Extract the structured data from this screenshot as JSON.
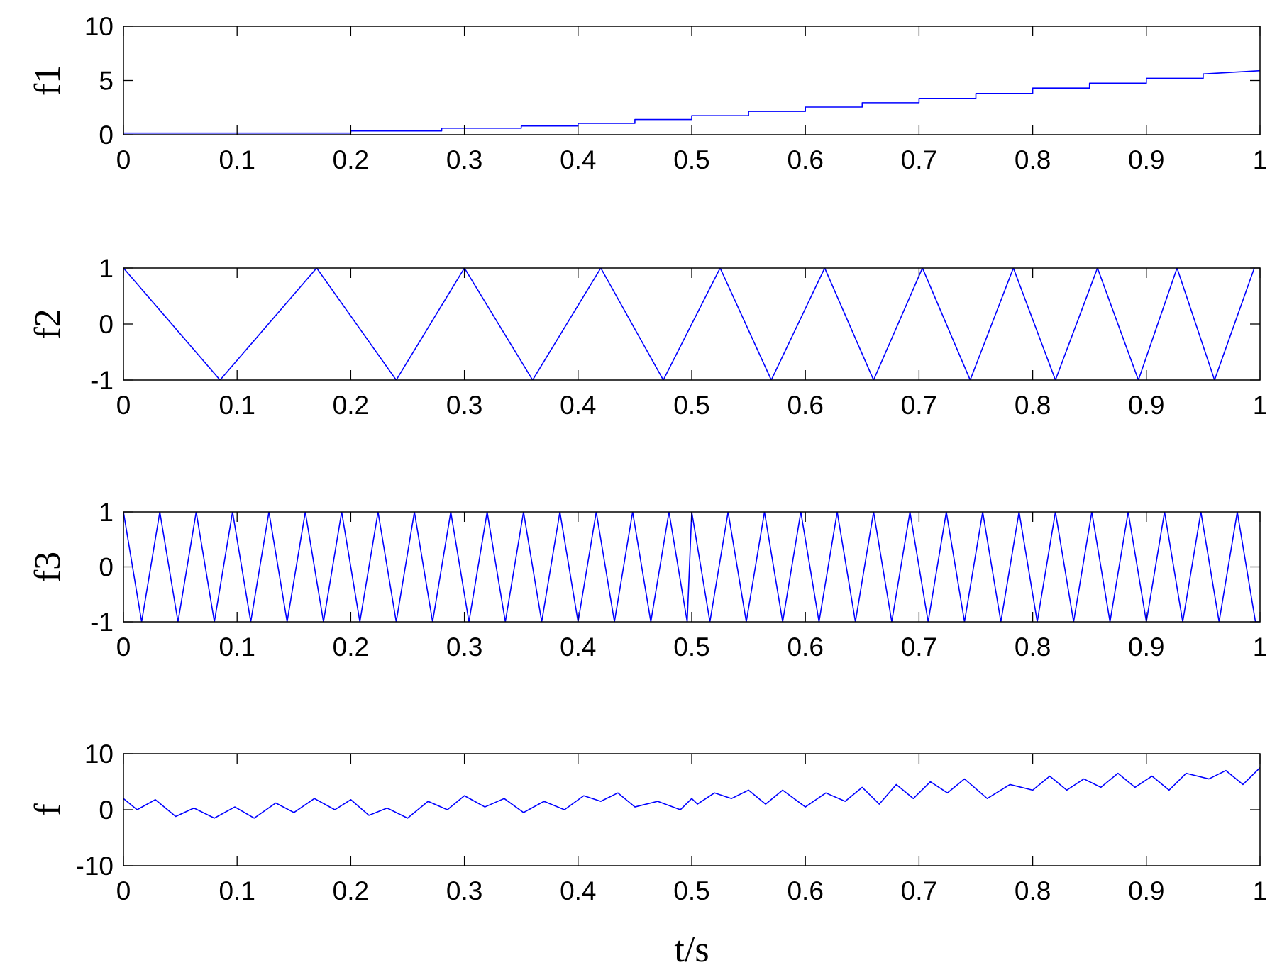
{
  "chart_data": [
    {
      "type": "line",
      "ylabel": "f1",
      "xlabel": "",
      "xlim": [
        0,
        1
      ],
      "ylim": [
        0,
        10
      ],
      "xticks": [
        0,
        0.1,
        0.2,
        0.3,
        0.4,
        0.5,
        0.6,
        0.7,
        0.8,
        0.9,
        1
      ],
      "xtick_labels": [
        "0",
        "0.1",
        "0.2",
        "0.3",
        "0.4",
        "0.5",
        "0.6",
        "0.7",
        "0.8",
        "0.9",
        "1"
      ],
      "yticks": [
        0,
        5,
        10
      ],
      "ytick_labels": [
        "0",
        "5",
        "10"
      ],
      "grid": false,
      "color": "#0000ff",
      "series": [
        {
          "x": [
            0,
            0.2,
            0.2,
            0.28,
            0.28,
            0.35,
            0.35,
            0.4,
            0.4,
            0.45,
            0.45,
            0.5,
            0.5,
            0.55,
            0.55,
            0.6,
            0.6,
            0.65,
            0.65,
            0.7,
            0.7,
            0.75,
            0.75,
            0.8,
            0.8,
            0.85,
            0.85,
            0.9,
            0.9,
            0.95,
            0.95,
            1.0
          ],
          "y": [
            0.15,
            0.15,
            0.35,
            0.35,
            0.6,
            0.6,
            0.8,
            0.8,
            1.05,
            1.05,
            1.4,
            1.4,
            1.75,
            1.75,
            2.15,
            2.15,
            2.55,
            2.55,
            2.95,
            2.95,
            3.35,
            3.35,
            3.8,
            3.8,
            4.3,
            4.3,
            4.75,
            4.75,
            5.2,
            5.2,
            5.6,
            5.9
          ]
        }
      ]
    },
    {
      "type": "line",
      "ylabel": "f2",
      "xlabel": "",
      "xlim": [
        0,
        1
      ],
      "ylim": [
        -1,
        1
      ],
      "xticks": [
        0,
        0.1,
        0.2,
        0.3,
        0.4,
        0.5,
        0.6,
        0.7,
        0.8,
        0.9,
        1
      ],
      "xtick_labels": [
        "0",
        "0.1",
        "0.2",
        "0.3",
        "0.4",
        "0.5",
        "0.6",
        "0.7",
        "0.8",
        "0.9",
        "1"
      ],
      "yticks": [
        -1,
        0,
        1
      ],
      "ytick_labels": [
        "-1",
        "0",
        "1"
      ],
      "grid": false,
      "color": "#0000ff",
      "series": [
        {
          "x": [
            0,
            0.085,
            0.17,
            0.24,
            0.3,
            0.36,
            0.42,
            0.475,
            0.525,
            0.57,
            0.617,
            0.66,
            0.703,
            0.745,
            0.783,
            0.82,
            0.857,
            0.893,
            0.927,
            0.96,
            0.995
          ],
          "y": [
            1,
            -1,
            1,
            -1,
            1,
            -1,
            1,
            -1,
            1,
            -1,
            1,
            -1,
            1,
            -1,
            1,
            -1,
            1,
            -1,
            1,
            -1,
            1
          ]
        }
      ]
    },
    {
      "type": "line",
      "ylabel": "f3",
      "xlabel": "",
      "xlim": [
        0,
        1
      ],
      "ylim": [
        -1,
        1
      ],
      "xticks": [
        0,
        0.1,
        0.2,
        0.3,
        0.4,
        0.5,
        0.6,
        0.7,
        0.8,
        0.9,
        1
      ],
      "xtick_labels": [
        "0",
        "0.1",
        "0.2",
        "0.3",
        "0.4",
        "0.5",
        "0.6",
        "0.7",
        "0.8",
        "0.9",
        "1"
      ],
      "yticks": [
        -1,
        0,
        1
      ],
      "ytick_labels": [
        "-1",
        "0",
        "1"
      ],
      "grid": false,
      "color": "#0000ff",
      "series": [
        {
          "x": [
            0,
            0.016,
            0.032,
            0.048,
            0.064,
            0.08,
            0.096,
            0.112,
            0.128,
            0.144,
            0.16,
            0.176,
            0.192,
            0.208,
            0.224,
            0.24,
            0.256,
            0.272,
            0.288,
            0.304,
            0.32,
            0.336,
            0.352,
            0.368,
            0.384,
            0.4,
            0.416,
            0.432,
            0.448,
            0.464,
            0.48,
            0.496,
            0.5,
            0.516,
            0.532,
            0.548,
            0.564,
            0.58,
            0.596,
            0.612,
            0.628,
            0.644,
            0.66,
            0.676,
            0.692,
            0.708,
            0.724,
            0.74,
            0.756,
            0.772,
            0.788,
            0.804,
            0.82,
            0.836,
            0.852,
            0.868,
            0.884,
            0.9,
            0.916,
            0.932,
            0.948,
            0.964,
            0.98,
            0.996,
            1.0
          ],
          "y": [
            1,
            -1,
            1,
            -1,
            1,
            -1,
            1,
            -1,
            1,
            -1,
            1,
            -1,
            1,
            -1,
            1,
            -1,
            1,
            -1,
            1,
            -1,
            1,
            -1,
            1,
            -1,
            1,
            -1,
            1,
            -1,
            1,
            -1,
            1,
            -1,
            1,
            -1,
            1,
            -1,
            1,
            -1,
            1,
            -1,
            1,
            -1,
            1,
            -1,
            1,
            -1,
            1,
            -1,
            1,
            -1,
            1,
            -1,
            1,
            -1,
            1,
            -1,
            1,
            -1,
            1,
            -1,
            1,
            -1,
            1,
            -1,
            -1
          ]
        }
      ]
    },
    {
      "type": "line",
      "ylabel": "f",
      "xlabel": "t/s",
      "xlim": [
        0,
        1
      ],
      "ylim": [
        -10,
        10
      ],
      "xticks": [
        0,
        0.1,
        0.2,
        0.3,
        0.4,
        0.5,
        0.6,
        0.7,
        0.8,
        0.9,
        1
      ],
      "xtick_labels": [
        "0",
        "0.1",
        "0.2",
        "0.3",
        "0.4",
        "0.5",
        "0.6",
        "0.7",
        "0.8",
        "0.9",
        "1"
      ],
      "yticks": [
        -10,
        0,
        10
      ],
      "ytick_labels": [
        "-10",
        "0",
        "10"
      ],
      "grid": false,
      "color": "#0000ff",
      "series": [
        {
          "x": [
            0,
            0.012,
            0.028,
            0.046,
            0.062,
            0.08,
            0.098,
            0.115,
            0.134,
            0.15,
            0.168,
            0.186,
            0.2,
            0.216,
            0.232,
            0.25,
            0.268,
            0.285,
            0.3,
            0.318,
            0.335,
            0.352,
            0.37,
            0.388,
            0.405,
            0.42,
            0.435,
            0.45,
            0.47,
            0.49,
            0.5,
            0.505,
            0.52,
            0.535,
            0.55,
            0.565,
            0.58,
            0.6,
            0.618,
            0.635,
            0.65,
            0.665,
            0.68,
            0.695,
            0.71,
            0.725,
            0.74,
            0.76,
            0.78,
            0.8,
            0.815,
            0.83,
            0.845,
            0.86,
            0.875,
            0.89,
            0.905,
            0.92,
            0.935,
            0.955,
            0.97,
            0.985,
            1.0
          ],
          "y": [
            2.0,
            0,
            1.8,
            -1.2,
            0.3,
            -1.5,
            0.5,
            -1.5,
            1.2,
            -0.5,
            2.0,
            0,
            1.8,
            -1.0,
            0.3,
            -1.5,
            1.5,
            0,
            2.5,
            0.5,
            2.0,
            -0.5,
            1.5,
            0,
            2.5,
            1.5,
            3.0,
            0.5,
            1.5,
            0,
            2.0,
            1.0,
            3.0,
            2.0,
            3.5,
            1.0,
            3.5,
            0.5,
            3.0,
            1.5,
            4.0,
            1.0,
            4.5,
            2.0,
            5.0,
            3.0,
            5.5,
            2.0,
            4.5,
            3.5,
            6.0,
            3.5,
            5.5,
            4.0,
            6.5,
            4.0,
            6.0,
            3.5,
            6.5,
            5.5,
            7.0,
            4.5,
            7.5
          ]
        }
      ]
    }
  ]
}
